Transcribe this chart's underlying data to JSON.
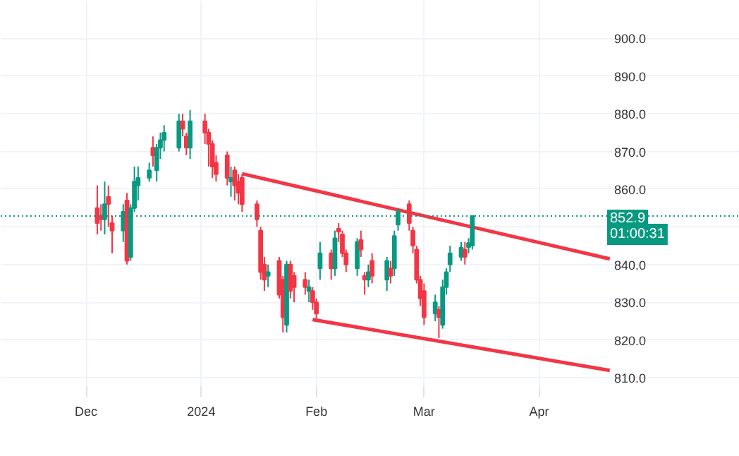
{
  "chart_data": {
    "type": "candlestick",
    "x": [
      "2023-12-04",
      "2023-12-05",
      "2023-12-06",
      "2023-12-07",
      "2023-12-08",
      "2023-12-11",
      "2023-12-12",
      "2023-12-13",
      "2023-12-14",
      "2023-12-15",
      "2023-12-18",
      "2023-12-19",
      "2023-12-20",
      "2023-12-21",
      "2023-12-22",
      "2023-12-26",
      "2023-12-27",
      "2023-12-28",
      "2023-12-29",
      "2024-01-02",
      "2024-01-03",
      "2024-01-04",
      "2024-01-05",
      "2024-01-08",
      "2024-01-09",
      "2024-01-10",
      "2024-01-11",
      "2024-01-12",
      "2024-01-16",
      "2024-01-17",
      "2024-01-18",
      "2024-01-19",
      "2024-01-22",
      "2024-01-23",
      "2024-01-24",
      "2024-01-25",
      "2024-01-26",
      "2024-01-29",
      "2024-01-30",
      "2024-01-31",
      "2024-02-01",
      "2024-02-02",
      "2024-02-05",
      "2024-02-06",
      "2024-02-07",
      "2024-02-08",
      "2024-02-09",
      "2024-02-12",
      "2024-02-13",
      "2024-02-14",
      "2024-02-15",
      "2024-02-16",
      "2024-02-20",
      "2024-02-21",
      "2024-02-22",
      "2024-02-23",
      "2024-02-26",
      "2024-02-27",
      "2024-02-28",
      "2024-02-29",
      "2024-03-01",
      "2024-03-04",
      "2024-03-05",
      "2024-03-06",
      "2024-03-07",
      "2024-03-08",
      "2024-03-11",
      "2024-03-12",
      "2024-03-13",
      "2024-03-14"
    ],
    "ohlc": [
      [
        855,
        861,
        848,
        851
      ],
      [
        853,
        856,
        849,
        852
      ],
      [
        852,
        862,
        848,
        856
      ],
      [
        858,
        861,
        850,
        856
      ],
      [
        851,
        853,
        843,
        849
      ],
      [
        849,
        856,
        846,
        854
      ],
      [
        857,
        859,
        840,
        841
      ],
      [
        842,
        856,
        841,
        855
      ],
      [
        855,
        866,
        854,
        862
      ],
      [
        861,
        866,
        857,
        863
      ],
      [
        863,
        867,
        862,
        865
      ],
      [
        871,
        874,
        866,
        869
      ],
      [
        865,
        872,
        862,
        871
      ],
      [
        871,
        875,
        868,
        873
      ],
      [
        873,
        877,
        870,
        875
      ],
      [
        871,
        880,
        870,
        878
      ],
      [
        878,
        880,
        874,
        876
      ],
      [
        874,
        875,
        869,
        871
      ],
      [
        871,
        881,
        868,
        878
      ],
      [
        878,
        880,
        872,
        875
      ],
      [
        875,
        876,
        866,
        872
      ],
      [
        872,
        873,
        863,
        866
      ],
      [
        867,
        869,
        862,
        864
      ],
      [
        869,
        870,
        861,
        863
      ],
      [
        862,
        866,
        858,
        863
      ],
      [
        865,
        866,
        857,
        861
      ],
      [
        862,
        864,
        856,
        859
      ],
      [
        863,
        864,
        854,
        856
      ],
      [
        856,
        857,
        850,
        852
      ],
      [
        849,
        850,
        836,
        838
      ],
      [
        840,
        842,
        833,
        836
      ],
      [
        837,
        840,
        834,
        838
      ],
      [
        841,
        842,
        831,
        832
      ],
      [
        836,
        837,
        822,
        826
      ],
      [
        824,
        841,
        822,
        840
      ],
      [
        840,
        841,
        831,
        833
      ],
      [
        837,
        838,
        830,
        834
      ],
      [
        836,
        838,
        832,
        834
      ],
      [
        833,
        836,
        830,
        834
      ],
      [
        833,
        834,
        828,
        830
      ],
      [
        830,
        831,
        825,
        827
      ],
      [
        839,
        846,
        836,
        843
      ],
      [
        843,
        844,
        836,
        839
      ],
      [
        839,
        849,
        837,
        847
      ],
      [
        849.5,
        851,
        846,
        848.7
      ],
      [
        848,
        849,
        842,
        843
      ],
      [
        843,
        844,
        838,
        840
      ],
      [
        839,
        847,
        837,
        846
      ],
      [
        846.5,
        849,
        842,
        844
      ],
      [
        837,
        838,
        832,
        836
      ],
      [
        836,
        840,
        834,
        838
      ],
      [
        841,
        843,
        835,
        837
      ],
      [
        836,
        842,
        833,
        841
      ],
      [
        839,
        841,
        835,
        837
      ],
      [
        839,
        849,
        837,
        847.6
      ],
      [
        850.6,
        855,
        849,
        854
      ],
      [
        856,
        857,
        849,
        851
      ],
      [
        849,
        850,
        843,
        845
      ],
      [
        844,
        845,
        835,
        836
      ],
      [
        836,
        837,
        829,
        831
      ],
      [
        833,
        835,
        824,
        826
      ],
      [
        827,
        832,
        825,
        830
      ],
      [
        828,
        829,
        820.5,
        826
      ],
      [
        824,
        836,
        823,
        834
      ],
      [
        834,
        839,
        832,
        838
      ],
      [
        840,
        845,
        838,
        843
      ],
      [
        842,
        846,
        841,
        844.5
      ],
      [
        844,
        846,
        840,
        842
      ],
      [
        844.6,
        847,
        843,
        845.7
      ],
      [
        845,
        853,
        844,
        852.9
      ]
    ],
    "colors": [
      "#f23645",
      "#f23645",
      "#089981",
      "#f23645",
      "#f23645",
      "#089981",
      "#f23645",
      "#089981",
      "#089981",
      "#089981",
      "#089981",
      "#f23645",
      "#089981",
      "#089981",
      "#089981",
      "#089981",
      "#f23645",
      "#f23645",
      "#089981",
      "#f23645",
      "#f23645",
      "#f23645",
      "#f23645",
      "#f23645",
      "#089981",
      "#f23645",
      "#f23645",
      "#f23645",
      "#f23645",
      "#f23645",
      "#f23645",
      "#089981",
      "#f23645",
      "#f23645",
      "#089981",
      "#f23645",
      "#f23645",
      "#f23645",
      "#089981",
      "#f23645",
      "#f23645",
      "#089981",
      "#f23645",
      "#089981",
      "#f23645",
      "#f23645",
      "#f23645",
      "#089981",
      "#f23645",
      "#f23645",
      "#089981",
      "#f23645",
      "#089981",
      "#f23645",
      "#089981",
      "#089981",
      "#f23645",
      "#f23645",
      "#f23645",
      "#f23645",
      "#f23645",
      "#089981",
      "#f23645",
      "#089981",
      "#089981",
      "#089981",
      "#089981",
      "#f23645",
      "#089981",
      "#089981"
    ],
    "series": [
      {
        "type": "line",
        "color": "#f23645",
        "x": [
          "2024-01-12",
          "2024-04-20"
        ],
        "values": [
          864.1,
          841.5
        ]
      },
      {
        "type": "line",
        "color": "#f23645",
        "x": [
          "2024-01-31",
          "2024-04-20"
        ],
        "values": [
          825.4,
          811.9
        ]
      }
    ],
    "xlim": [
      "2023-11-08",
      "2024-05-25"
    ],
    "xticks": [
      {
        "value": "2023-12-01",
        "label": "Dec"
      },
      {
        "value": "2024-01-01",
        "label": "2024"
      },
      {
        "value": "2024-02-01",
        "label": "Feb"
      },
      {
        "value": "2024-03-01",
        "label": "Mar"
      },
      {
        "value": "2024-04-01",
        "label": "Apr"
      }
    ],
    "ylim": [
      807,
      910
    ],
    "yticks": [
      {
        "value": 810,
        "label": "810.0"
      },
      {
        "value": 820,
        "label": "820.0"
      },
      {
        "value": 830,
        "label": "830.0"
      },
      {
        "value": 840,
        "label": "840.0"
      },
      {
        "value": 850,
        "label": null
      },
      {
        "value": 860,
        "label": "860.0"
      },
      {
        "value": 870,
        "label": "870.0"
      },
      {
        "value": 880,
        "label": "880.0"
      },
      {
        "value": 890,
        "label": "890.0"
      },
      {
        "value": 900,
        "label": "900.0"
      }
    ],
    "ref_lines": [
      {
        "axis": "y",
        "value": 852.9,
        "label": "852.9",
        "color": "#089981",
        "line_style": "dotted"
      }
    ],
    "annotations": [
      "01:00:31"
    ],
    "grid": true
  }
}
